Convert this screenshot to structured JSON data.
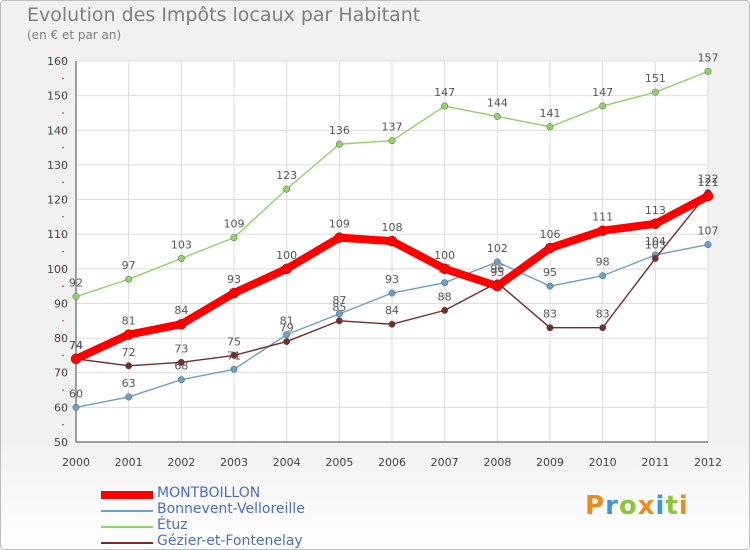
{
  "header": {
    "title": "Evolution des Impôts locaux par Habitant",
    "subtitle": "(en € et par an)"
  },
  "logo": {
    "letters": [
      "P",
      "r",
      "o",
      "x",
      "i",
      "t",
      "i"
    ],
    "colors": [
      "#f08a1c",
      "#3a9ad9",
      "#8cc63f",
      "#f08a1c",
      "#3a9ad9",
      "#8cc63f",
      "#f08a1c"
    ]
  },
  "chart_data": {
    "type": "line",
    "title": "Evolution des Impôts locaux par Habitant",
    "subtitle": "(en € et par an)",
    "xlabel": "",
    "ylabel": "",
    "x": [
      2000,
      2001,
      2002,
      2003,
      2004,
      2005,
      2006,
      2007,
      2008,
      2009,
      2010,
      2011,
      2012
    ],
    "ylim": [
      50,
      160
    ],
    "yticks": [
      50,
      60,
      70,
      80,
      90,
      100,
      110,
      120,
      130,
      140,
      150,
      160
    ],
    "grid": true,
    "legend_position": "bottom-left",
    "series": [
      {
        "name": "MONTBOILLON",
        "color": "#ff0000",
        "values": [
          74,
          81,
          84,
          93,
          100,
          109,
          108,
          100,
          95,
          106,
          111,
          113,
          121
        ]
      },
      {
        "name": "Bonnevent-Velloreille",
        "color": "#6b9fd1",
        "values": [
          60,
          63,
          68,
          71,
          81,
          87,
          93,
          96,
          102,
          95,
          98,
          104,
          107
        ]
      },
      {
        "name": "Étuz",
        "color": "#8fd466",
        "values": [
          92,
          97,
          103,
          109,
          123,
          136,
          137,
          147,
          144,
          141,
          147,
          151,
          157
        ]
      },
      {
        "name": "Gézier-et-Fontenelay",
        "color": "#7a2a2a",
        "values": [
          74,
          72,
          73,
          75,
          79,
          85,
          84,
          88,
          96,
          83,
          83,
          103,
          122
        ]
      }
    ]
  }
}
